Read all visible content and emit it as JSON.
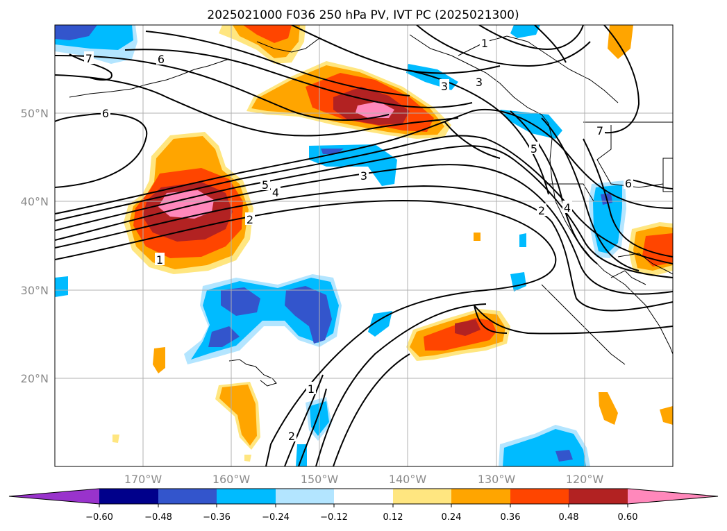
{
  "title": "2025021000 F036 250 hPa PV, IVT PC (2025021300)",
  "lat_labels": [
    "50°N",
    "40°N",
    "30°N",
    "20°N"
  ],
  "lon_labels": [
    "170°W",
    "160°W",
    "150°W",
    "140°W",
    "130°W",
    "120°W"
  ],
  "colorbar": {
    "ticks": [
      "−0.60",
      "−0.48",
      "−0.36",
      "−0.24",
      "−0.12",
      "0.12",
      "0.24",
      "0.36",
      "0.48",
      "0.60"
    ],
    "colors": [
      "#9933cc",
      "#00008b",
      "#3355cc",
      "#00bbff",
      "#b3e5ff",
      "#ffffff",
      "#ffe680",
      "#ffa500",
      "#ff4500",
      "#b22222",
      "#ff88bb"
    ]
  },
  "contour_labels": [
    "7",
    "6",
    "6",
    "5",
    "4",
    "3",
    "3",
    "2",
    "1",
    "1",
    "2",
    "1",
    "2",
    "4",
    "5",
    "7",
    "6",
    "3"
  ]
}
